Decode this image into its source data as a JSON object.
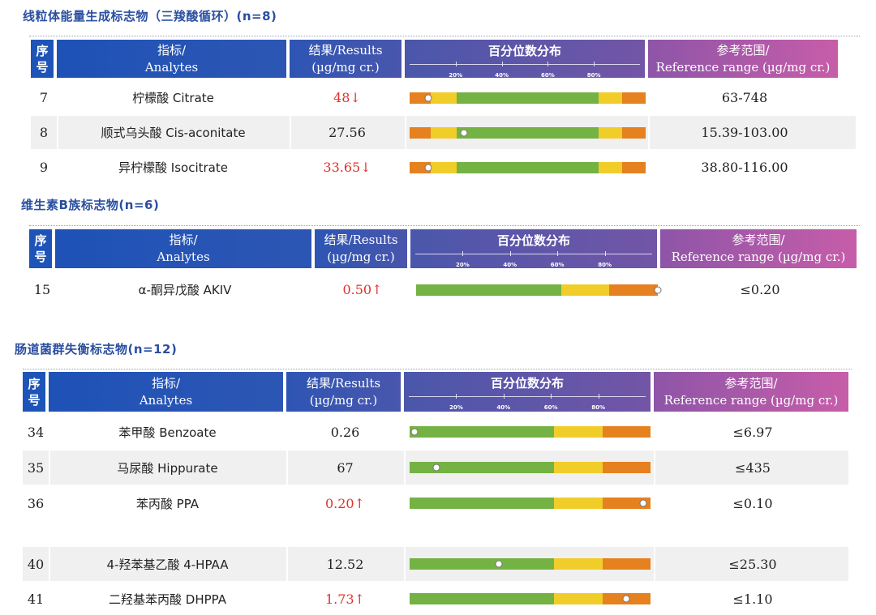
{
  "colors": {
    "green": "#74b244",
    "yellow": "#f1cd2a",
    "orange": "#e5811e",
    "abnormal": "#e0302a",
    "title": "#2a4fa0"
  },
  "headers": {
    "seq": "序\n号",
    "analyte_cn": "指标/",
    "analyte_en": "Analytes",
    "result_cn": "结果/Results",
    "result_unit": "(µg/mg cr.)",
    "percentile": "百分位数分布",
    "ref_cn": "参考范围/",
    "ref_en": "Reference range (µg/mg cr.)",
    "ticks": [
      "20%",
      "40%",
      "60%",
      "80%"
    ]
  },
  "sections": [
    {
      "title": "线粒体能量生成标志物（三羧酸循环）(n=8)",
      "rows": [
        {
          "no": "7",
          "name": "柠檬酸 Citrate",
          "result": "48↓",
          "abnormal": true,
          "ref": "63-748",
          "percentile": 0.08,
          "bands": [
            0.09,
            0.11,
            0.6,
            0.1,
            0.1
          ]
        },
        {
          "no": "8",
          "name": "顺式乌头酸 Cis-aconitate",
          "result": "27.56",
          "abnormal": false,
          "ref": "15.39-103.00",
          "percentile": 0.23,
          "bands": [
            0.09,
            0.11,
            0.6,
            0.1,
            0.1
          ]
        },
        {
          "no": "9",
          "name": "异柠檬酸 Isocitrate",
          "result": "33.65↓",
          "abnormal": true,
          "ref": "38.80-116.00",
          "percentile": 0.08,
          "bands": [
            0.09,
            0.11,
            0.6,
            0.1,
            0.1
          ]
        }
      ]
    },
    {
      "title": "维生素B族标志物(n=6)",
      "rows": [
        {
          "no": "15",
          "name": "α-酮异戊酸 AKIV",
          "result": "0.50↑",
          "abnormal": true,
          "ref": "≤0.20",
          "percentile": 1.0,
          "bands": [
            0,
            0,
            0.6,
            0.2,
            0.2
          ]
        }
      ]
    },
    {
      "title": "肠道菌群失衡标志物(n=12)",
      "rows": [
        {
          "no": "34",
          "name": "苯甲酸 Benzoate",
          "result": "0.26",
          "abnormal": false,
          "ref": "≤6.97",
          "percentile": 0.02,
          "bands": [
            0,
            0,
            0.6,
            0.2,
            0.2
          ]
        },
        {
          "no": "35",
          "name": "马尿酸 Hippurate",
          "result": "67",
          "abnormal": false,
          "ref": "≤435",
          "percentile": 0.11,
          "bands": [
            0,
            0,
            0.6,
            0.2,
            0.2
          ]
        },
        {
          "no": "36",
          "name": "苯丙酸 PPA",
          "result": "0.20↑",
          "abnormal": true,
          "ref": "≤0.10",
          "percentile": 0.97,
          "bands": [
            0,
            0,
            0.6,
            0.2,
            0.2
          ]
        },
        {
          "no": "40",
          "name": "4-羟苯基乙酸 4-HPAA",
          "result": "12.52",
          "abnormal": false,
          "ref": "≤25.30",
          "percentile": 0.37,
          "bands": [
            0,
            0,
            0.6,
            0.2,
            0.2
          ]
        },
        {
          "no": "41",
          "name": "二羟基苯丙酸 DHPPA",
          "result": "1.73↑",
          "abnormal": true,
          "ref": "≤1.10",
          "percentile": 0.9,
          "bands": [
            0,
            0,
            0.6,
            0.2,
            0.2
          ]
        }
      ]
    }
  ]
}
